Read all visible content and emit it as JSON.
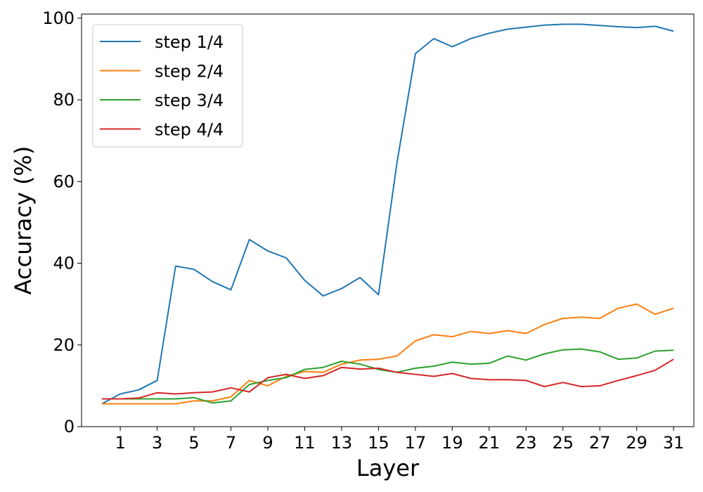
{
  "chart_data": {
    "type": "line",
    "title": "",
    "xlabel": "Layer",
    "ylabel": "Accuracy (%)",
    "xlim": [
      -1.1,
      32.1
    ],
    "ylim": [
      0,
      101
    ],
    "xticks": [
      1,
      3,
      5,
      7,
      9,
      11,
      13,
      15,
      17,
      19,
      21,
      23,
      25,
      27,
      29,
      31
    ],
    "yticks": [
      0,
      20,
      40,
      60,
      80,
      100
    ],
    "grid": false,
    "legend_position": "upper left",
    "x": [
      0,
      1,
      2,
      3,
      4,
      5,
      6,
      7,
      8,
      9,
      10,
      11,
      12,
      13,
      14,
      15,
      16,
      17,
      18,
      19,
      20,
      21,
      22,
      23,
      24,
      25,
      26,
      27,
      28,
      29,
      30,
      31
    ],
    "series": [
      {
        "name": "step 1/4",
        "color": "#1f77b4",
        "values": [
          5.6,
          8.0,
          9.0,
          11.3,
          39.3,
          38.5,
          35.5,
          33.5,
          45.8,
          43.0,
          41.3,
          35.8,
          32.0,
          33.8,
          36.5,
          32.3,
          64.5,
          91.3,
          95.0,
          93.0,
          95.0,
          96.3,
          97.3,
          97.8,
          98.3,
          98.5,
          98.5,
          98.2,
          97.9,
          97.7,
          98.0,
          96.8
        ]
      },
      {
        "name": "step 2/4",
        "color": "#ff7f0e",
        "values": [
          5.6,
          5.6,
          5.6,
          5.6,
          5.6,
          6.3,
          6.3,
          7.3,
          11.3,
          10.0,
          12.3,
          13.5,
          13.3,
          15.3,
          16.3,
          16.5,
          17.3,
          21.0,
          22.5,
          22.0,
          23.3,
          22.8,
          23.5,
          22.8,
          25.0,
          26.5,
          26.8,
          26.5,
          29.0,
          30.0,
          27.5,
          29.0
        ]
      },
      {
        "name": "step 3/4",
        "color": "#2ca02c",
        "values": [
          6.8,
          6.8,
          6.8,
          6.8,
          6.8,
          7.1,
          5.8,
          6.3,
          10.3,
          11.3,
          12.0,
          14.0,
          14.5,
          16.0,
          15.3,
          14.0,
          13.3,
          14.3,
          14.8,
          15.8,
          15.3,
          15.5,
          17.3,
          16.3,
          17.8,
          18.8,
          19.0,
          18.3,
          16.5,
          16.8,
          18.5,
          18.7
        ]
      },
      {
        "name": "step 4/4",
        "color": "#d62728",
        "values": [
          6.8,
          6.8,
          7.0,
          8.3,
          8.0,
          8.3,
          8.5,
          9.5,
          8.5,
          12.0,
          12.8,
          11.8,
          12.5,
          14.5,
          14.1,
          14.3,
          13.3,
          12.8,
          12.3,
          13.0,
          11.8,
          11.5,
          11.5,
          11.3,
          9.8,
          10.8,
          9.8,
          10.0,
          11.3,
          12.5,
          13.8,
          16.5
        ]
      }
    ]
  }
}
